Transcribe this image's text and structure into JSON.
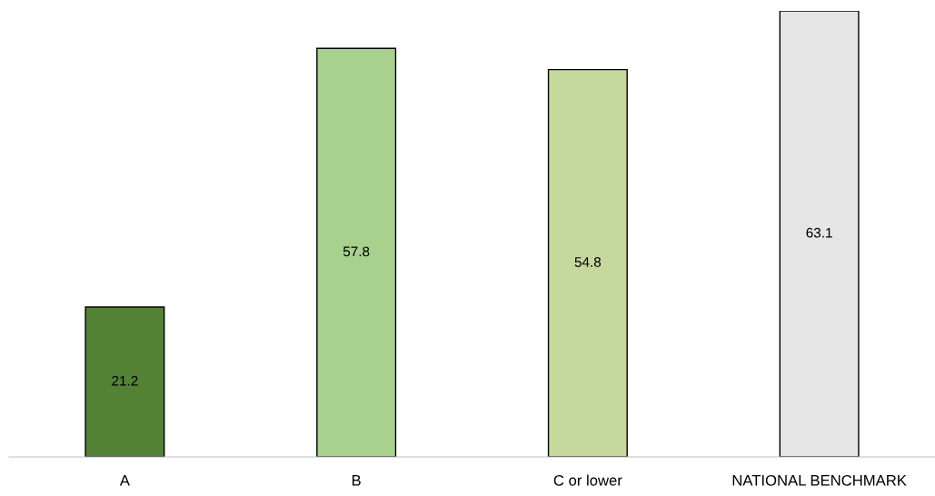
{
  "chart_data": {
    "type": "bar",
    "categories": [
      "A",
      "B",
      "C or lower",
      "NATIONAL BENCHMARK"
    ],
    "values": [
      21.2,
      57.8,
      54.8,
      63.1
    ],
    "colors": [
      "#548235",
      "#a9d18e",
      "#c5d99c",
      "#e7e6e6"
    ],
    "data_labels": true,
    "grid": false,
    "legend": false
  }
}
